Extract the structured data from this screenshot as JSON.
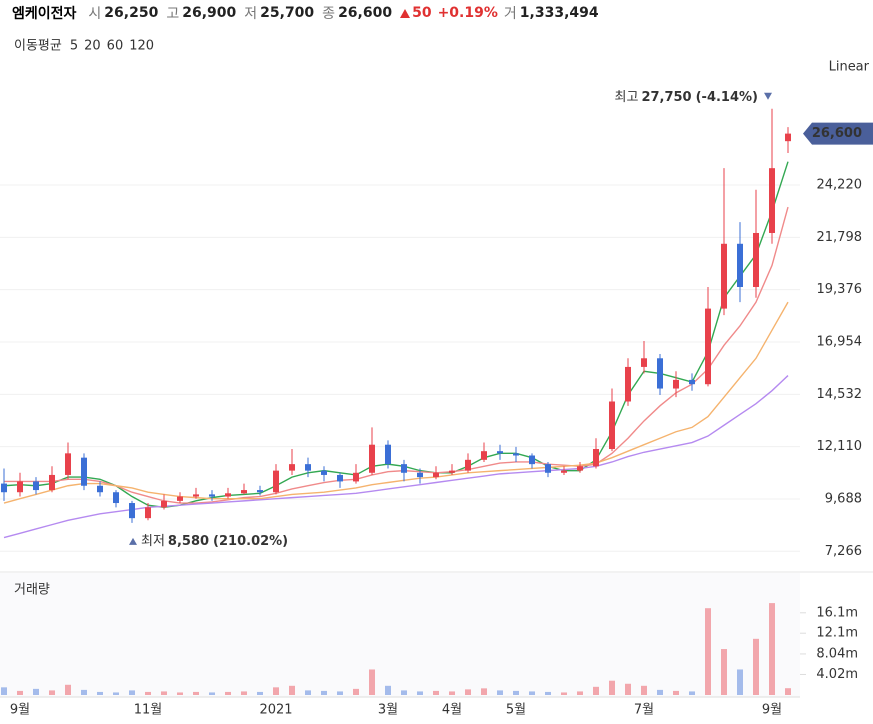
{
  "header": {
    "name": "엠케이전자",
    "open_label": "시",
    "open": "26,250",
    "high_label": "고",
    "high": "26,900",
    "low_label": "저",
    "low": "25,700",
    "close_label": "종",
    "close": "26,600",
    "change": "50",
    "change_pct": "+0.19%",
    "volume_label": "거",
    "volume": "1,333,494"
  },
  "chart_data": [
    {
      "type": "candlestick",
      "legend_title": "이동평균",
      "scale_label": "Linear",
      "categories": [
        null,
        "9월",
        null,
        null,
        null,
        null,
        null,
        null,
        null,
        "11월",
        null,
        null,
        null,
        null,
        null,
        null,
        null,
        "2021",
        null,
        null,
        null,
        null,
        null,
        null,
        "3월",
        null,
        null,
        null,
        "4월",
        null,
        null,
        null,
        "5월",
        null,
        null,
        null,
        null,
        null,
        null,
        null,
        "7월",
        null,
        null,
        null,
        null,
        null,
        null,
        null,
        "9월",
        null
      ],
      "open": [
        10400,
        10000,
        10500,
        10100,
        10800,
        11600,
        10300,
        10000,
        9500,
        8800,
        9300,
        9600,
        9800,
        9900,
        9800,
        9950,
        10100,
        10000,
        11000,
        11300,
        11000,
        10800,
        10500,
        10900,
        12200,
        11300,
        10900,
        10700,
        10900,
        11000,
        11500,
        11900,
        11800,
        11700,
        11300,
        10900,
        11000,
        11200,
        12000,
        14200,
        15800,
        16200,
        14800,
        15200,
        15000,
        18500,
        21500,
        19500,
        22000,
        26250
      ],
      "high": [
        11100,
        10900,
        10700,
        11200,
        12300,
        11800,
        10500,
        10100,
        9600,
        9500,
        9900,
        10000,
        10200,
        10100,
        10200,
        10400,
        10300,
        11300,
        12000,
        11600,
        11200,
        10900,
        11300,
        13000,
        12400,
        11500,
        11100,
        11200,
        11300,
        11800,
        12300,
        12200,
        12100,
        11800,
        11400,
        11200,
        11400,
        12500,
        14800,
        16200,
        17000,
        16400,
        15600,
        15500,
        19500,
        25000,
        22500,
        24000,
        27750,
        26900
      ],
      "low": [
        9600,
        9800,
        9900,
        10000,
        10600,
        10100,
        9800,
        9300,
        8580,
        8700,
        9200,
        9500,
        9700,
        9600,
        9700,
        9900,
        9850,
        9900,
        10800,
        10700,
        10500,
        10200,
        10400,
        10800,
        11100,
        10500,
        10400,
        10600,
        10800,
        10900,
        11400,
        11500,
        11400,
        11100,
        10700,
        10800,
        10900,
        11100,
        11900,
        14000,
        15500,
        14500,
        14400,
        14700,
        14900,
        18200,
        18800,
        19000,
        21500,
        25700
      ],
      "close": [
        10000,
        10500,
        10100,
        10800,
        11800,
        10300,
        10000,
        9500,
        8800,
        9300,
        9600,
        9800,
        9900,
        9800,
        9950,
        10100,
        10000,
        11000,
        11300,
        11000,
        10800,
        10500,
        10900,
        12200,
        11300,
        10900,
        10700,
        10900,
        11000,
        11500,
        11900,
        11800,
        11700,
        11300,
        10900,
        11000,
        11200,
        12000,
        14200,
        15800,
        16200,
        14800,
        15200,
        15000,
        18500,
        21500,
        19500,
        22000,
        25000,
        26600
      ],
      "up_color": "#e8414b",
      "down_color": "#3b6fd6",
      "series": [
        {
          "name": "5",
          "color": "#33a852",
          "values": [
            10300,
            10350,
            10300,
            10400,
            10700,
            10700,
            10600,
            10300,
            9800,
            9400,
            9300,
            9400,
            9600,
            9750,
            9850,
            9900,
            9950,
            10300,
            10700,
            10900,
            11000,
            10900,
            10800,
            11200,
            11300,
            11200,
            11000,
            10900,
            10900,
            11200,
            11600,
            11800,
            11800,
            11600,
            11200,
            11000,
            11000,
            11500,
            12800,
            14500,
            15600,
            15500,
            15300,
            15100,
            16500,
            19000,
            20000,
            21000,
            23000,
            25300
          ]
        },
        {
          "name": "20",
          "color": "#f08a8a",
          "values": [
            10500,
            10500,
            10500,
            10500,
            10600,
            10600,
            10500,
            10300,
            10000,
            9800,
            9600,
            9500,
            9500,
            9550,
            9650,
            9750,
            9800,
            9950,
            10150,
            10300,
            10450,
            10550,
            10600,
            10800,
            10950,
            11000,
            10950,
            10900,
            10950,
            11050,
            11200,
            11350,
            11400,
            11400,
            11300,
            11250,
            11200,
            11300,
            11800,
            12500,
            13300,
            14000,
            14600,
            15000,
            15700,
            16800,
            17700,
            18800,
            20500,
            23200
          ]
        },
        {
          "name": "60",
          "color": "#f5b36e",
          "values": [
            9500,
            9700,
            9900,
            10100,
            10300,
            10400,
            10400,
            10300,
            10200,
            10000,
            9900,
            9800,
            9750,
            9700,
            9700,
            9700,
            9700,
            9800,
            9900,
            9950,
            10000,
            10100,
            10200,
            10350,
            10450,
            10550,
            10650,
            10700,
            10800,
            10900,
            10950,
            11000,
            11050,
            11100,
            11150,
            11200,
            11250,
            11350,
            11600,
            11900,
            12200,
            12500,
            12800,
            13000,
            13500,
            14400,
            15300,
            16200,
            17500,
            18800
          ]
        },
        {
          "name": "120",
          "color": "#b58af0",
          "values": [
            7900,
            8100,
            8300,
            8500,
            8700,
            8850,
            9000,
            9100,
            9200,
            9300,
            9350,
            9400,
            9450,
            9500,
            9550,
            9600,
            9650,
            9700,
            9750,
            9800,
            9850,
            9900,
            9950,
            10050,
            10150,
            10250,
            10350,
            10450,
            10550,
            10650,
            10750,
            10850,
            10900,
            10950,
            11000,
            11050,
            11100,
            11200,
            11400,
            11650,
            11850,
            12000,
            12150,
            12300,
            12600,
            13100,
            13600,
            14100,
            14700,
            15400
          ]
        }
      ],
      "ylim": [
        6400,
        28850
      ],
      "yticks": [
        {
          "value": 7266,
          "label": "7,266"
        },
        {
          "value": 9688,
          "label": "9,688"
        },
        {
          "value": 12110,
          "label": "12,110"
        },
        {
          "value": 14532,
          "label": "14,532"
        },
        {
          "value": 16954,
          "label": "16,954"
        },
        {
          "value": 19376,
          "label": "19,376"
        },
        {
          "value": 21798,
          "label": "21,798"
        },
        {
          "value": 24220,
          "label": "24,220"
        }
      ],
      "current_price": {
        "value": 26600,
        "label": "26,600"
      },
      "high_annotation": {
        "label": "최고",
        "value": 27750,
        "value_label": "27,750",
        "change": "(-4.14%)"
      },
      "low_annotation": {
        "label": "최저",
        "value": 8580,
        "value_label": "8,580",
        "change": "(210.02%)"
      },
      "grid": true
    },
    {
      "type": "bar",
      "title": "거래량",
      "values": [
        1500000,
        800000,
        1200000,
        900000,
        2000000,
        1000000,
        600000,
        500000,
        900000,
        600000,
        700000,
        500000,
        600000,
        500000,
        600000,
        700000,
        600000,
        1500000,
        1800000,
        900000,
        800000,
        700000,
        1200000,
        5000000,
        1800000,
        900000,
        700000,
        800000,
        700000,
        1100000,
        1300000,
        900000,
        800000,
        700000,
        600000,
        500000,
        700000,
        1600000,
        2800000,
        2200000,
        1800000,
        1000000,
        800000,
        700000,
        17000000,
        9000000,
        5000000,
        11000000,
        18000000,
        1333494
      ],
      "ylim": [
        0,
        23500000
      ],
      "yticks": [
        {
          "value": 4020000,
          "label": "4.02m"
        },
        {
          "value": 8040000,
          "label": "8.04m"
        },
        {
          "value": 12100000,
          "label": "12.1m"
        },
        {
          "value": 16100000,
          "label": "16.1m"
        }
      ]
    }
  ]
}
